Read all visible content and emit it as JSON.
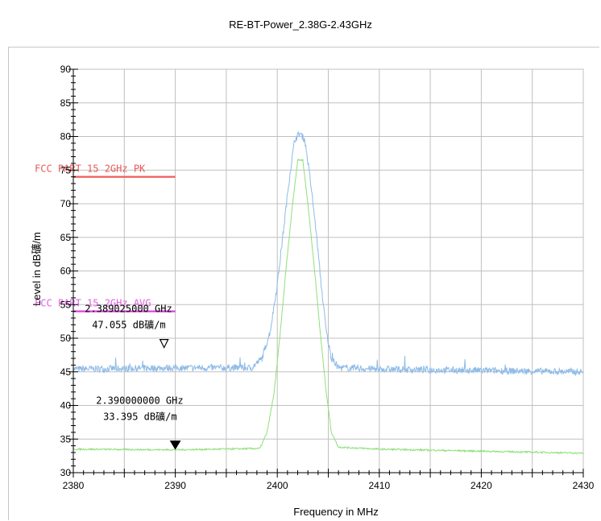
{
  "chart_data": {
    "type": "line",
    "title": "RE-BT-Power_2.38G-2.43GHz",
    "xlabel": "Frequency in MHz",
    "ylabel": "Level in dB礦/m",
    "xlim": [
      2380,
      2430
    ],
    "ylim": [
      30,
      90
    ],
    "x_ticks": [
      2380,
      2390,
      2400,
      2410,
      2420,
      2430
    ],
    "y_ticks": [
      30,
      35,
      40,
      45,
      50,
      55,
      60,
      65,
      70,
      75,
      80,
      85,
      90
    ],
    "grid": true,
    "series": [
      {
        "color": "#8ebbe8",
        "x": [
          2380,
          2390,
          2397.5,
          2398.5,
          2399.3,
          2400.0,
          2400.6,
          2401.2,
          2401.7,
          2402.2,
          2402.7,
          2403.2,
          2403.8,
          2404.3,
          2404.8,
          2405.3,
          2406.0,
          2410,
          2420,
          2430
        ],
        "y": [
          45.4,
          45.6,
          45.6,
          47.0,
          51.0,
          58.0,
          66.0,
          74.0,
          79.5,
          80.5,
          79.5,
          74.0,
          66.0,
          58.0,
          51.0,
          47.0,
          45.6,
          45.4,
          45.2,
          45.0
        ]
      },
      {
        "color": "#8fe07a",
        "x": [
          2380,
          2390,
          2398.3,
          2399.0,
          2399.7,
          2400.3,
          2400.9,
          2401.5,
          2402.0,
          2402.5,
          2403.0,
          2403.6,
          2404.2,
          2404.8,
          2405.3,
          2406.0,
          2410,
          2420,
          2430
        ],
        "y": [
          33.5,
          33.4,
          33.6,
          36.0,
          42.0,
          51.0,
          61.0,
          70.0,
          76.5,
          76.5,
          70.0,
          61.0,
          51.0,
          42.0,
          36.0,
          33.8,
          33.5,
          33.2,
          32.9
        ]
      }
    ],
    "limit_lines": [
      {
        "label": "FCC PART 15 2GHz  PK",
        "x": [
          2380,
          2390
        ],
        "y": 74,
        "color": "#f05a5a",
        "text_color": "#e85a5a"
      },
      {
        "label": "FCC PART 15 2GHz  AVG",
        "x": [
          2380,
          2390
        ],
        "y": 54,
        "color": "#e040e0",
        "text_color": "#e060e0"
      }
    ],
    "markers": [
      {
        "freq_label": "2.389025000 GHz",
        "level_label": "47.055 dB礦/m",
        "x": 2388.9,
        "y": 47.055,
        "style": "open"
      },
      {
        "freq_label": "2.390000000 GHz",
        "level_label": "33.395 dB礦/m",
        "x": 2390.0,
        "y": 33.395,
        "style": "filled"
      }
    ]
  }
}
